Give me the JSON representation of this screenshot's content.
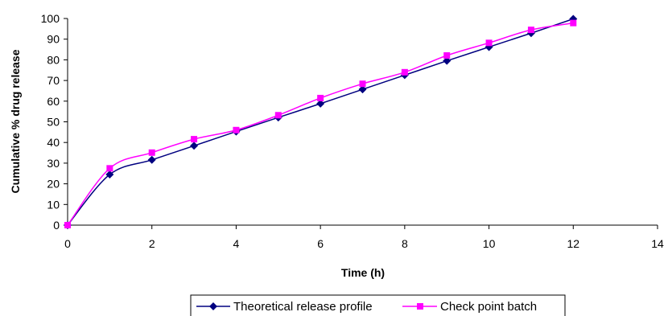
{
  "chart_data": {
    "type": "line",
    "title": "",
    "xlabel": "Time (h)",
    "ylabel": "Cumulative % drug release",
    "xlim": [
      0,
      14
    ],
    "ylim": [
      0,
      100
    ],
    "x_ticks": [
      0,
      2,
      4,
      6,
      8,
      10,
      12,
      14
    ],
    "y_ticks": [
      0,
      10,
      20,
      30,
      40,
      50,
      60,
      70,
      80,
      90,
      100
    ],
    "grid": false,
    "legend_position": "bottom",
    "series": [
      {
        "name": "Theoretical release profile",
        "color": "#000080",
        "marker": "diamond",
        "x": [
          0,
          1,
          2,
          3,
          4,
          5,
          6,
          7,
          8,
          9,
          10,
          11,
          12
        ],
        "y": [
          0,
          24.5,
          31.6,
          38.4,
          45.3,
          52.1,
          58.8,
          65.7,
          72.6,
          79.5,
          86.2,
          92.9,
          99.8
        ]
      },
      {
        "name": "Check point batch",
        "color": "#ff00ff",
        "marker": "square",
        "x": [
          0,
          1,
          2,
          3,
          4,
          5,
          6,
          7,
          8,
          9,
          10,
          11,
          12
        ],
        "y": [
          0,
          27.5,
          35.1,
          41.6,
          46.0,
          53.2,
          61.5,
          68.4,
          74.0,
          82.1,
          88.2,
          94.5,
          97.8
        ]
      }
    ]
  }
}
